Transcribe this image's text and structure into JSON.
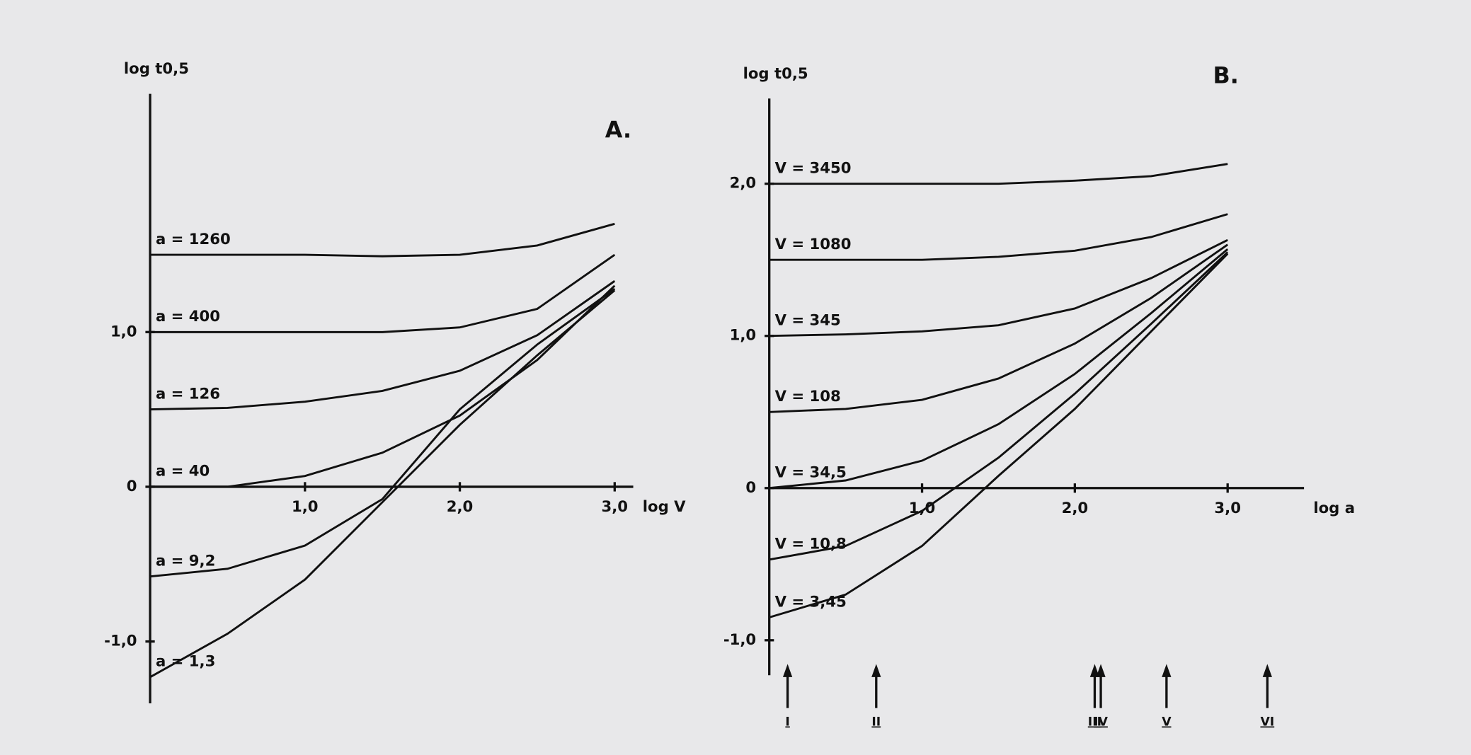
{
  "chart_data": [
    {
      "type": "line",
      "title": "A.",
      "x_label": "log V",
      "y_label": "log t0,5",
      "x": [
        0,
        0.5,
        1.0,
        1.5,
        2.0,
        2.5,
        3.0
      ],
      "series": [
        {
          "name": "a = 1260",
          "color": "#111111",
          "values": [
            1.5,
            1.5,
            1.5,
            1.49,
            1.5,
            1.56,
            1.7
          ]
        },
        {
          "name": "a = 400",
          "color": "#111111",
          "values": [
            1.0,
            1.0,
            1.0,
            1.0,
            1.03,
            1.15,
            1.5
          ]
        },
        {
          "name": "a = 126",
          "color": "#111111",
          "values": [
            0.5,
            0.51,
            0.55,
            0.62,
            0.75,
            0.98,
            1.33
          ]
        },
        {
          "name": "a = 40",
          "color": "#111111",
          "values": [
            0,
            0,
            0.07,
            0.22,
            0.46,
            0.82,
            1.3
          ]
        },
        {
          "name": "a = 9,2",
          "color": "#111111",
          "values": [
            -0.58,
            -0.53,
            -0.38,
            -0.08,
            0.5,
            0.92,
            1.28
          ]
        },
        {
          "name": "a = 1,3",
          "color": "#111111",
          "values": [
            -1.23,
            -0.95,
            -0.6,
            -0.1,
            0.4,
            0.85,
            1.27
          ]
        }
      ],
      "xlim": [
        0,
        3.12
      ],
      "ylim": [
        -1.4,
        2.54
      ],
      "xticks": [
        {
          "value": 1,
          "label": "1,0"
        },
        {
          "value": 2,
          "label": "2,0"
        },
        {
          "value": 3,
          "label": "3,0"
        }
      ],
      "yticks": [
        {
          "value": -1,
          "label": "-1,0"
        },
        0,
        {
          "value": 1,
          "label": "1,0"
        }
      ],
      "grid": false
    },
    {
      "type": "line",
      "title": "B.",
      "x_label": "log a",
      "y_label": "log t0,5",
      "x": [
        0,
        0.5,
        1.0,
        1.5,
        2.0,
        2.5,
        3.0
      ],
      "series": [
        {
          "name": "V = 3450",
          "color": "#111111",
          "values": [
            2.0,
            2.0,
            2.0,
            2.0,
            2.02,
            2.05,
            2.13
          ]
        },
        {
          "name": "V = 1080",
          "color": "#111111",
          "values": [
            1.5,
            1.5,
            1.5,
            1.52,
            1.56,
            1.65,
            1.8
          ]
        },
        {
          "name": "V = 345",
          "color": "#111111",
          "values": [
            1.0,
            1.01,
            1.03,
            1.07,
            1.18,
            1.38,
            1.63
          ]
        },
        {
          "name": "V = 108",
          "color": "#111111",
          "values": [
            0.5,
            0.52,
            0.58,
            0.72,
            0.95,
            1.25,
            1.6
          ]
        },
        {
          "name": "V = 34,5",
          "color": "#111111",
          "values": [
            0,
            0.05,
            0.18,
            0.42,
            0.75,
            1.15,
            1.57
          ]
        },
        {
          "name": "V = 10,8",
          "color": "#111111",
          "values": [
            -0.47,
            -0.38,
            -0.15,
            0.2,
            0.62,
            1.08,
            1.55
          ]
        },
        {
          "name": "V = 3,45",
          "color": "#111111",
          "values": [
            -0.85,
            -0.7,
            -0.38,
            0.08,
            0.52,
            1.03,
            1.54
          ]
        }
      ],
      "xlim": [
        0,
        3.5
      ],
      "ylim": [
        -1.23,
        2.56
      ],
      "xticks": [
        {
          "value": 1,
          "label": "1,0"
        },
        {
          "value": 2,
          "label": "2,0"
        },
        {
          "value": 3,
          "label": "3,0"
        }
      ],
      "yticks": [
        {
          "value": -1,
          "label": "-1,0"
        },
        0,
        {
          "value": 1,
          "label": "1,0"
        },
        {
          "value": 2,
          "label": "2,0"
        }
      ],
      "markers": [
        {
          "x": 0.12,
          "label": "I"
        },
        {
          "x": 0.7,
          "label": "II"
        },
        {
          "x": 2.13,
          "label": "III"
        },
        {
          "x": 2.17,
          "label": "IV"
        },
        {
          "x": 2.6,
          "label": "V"
        },
        {
          "x": 3.26,
          "label": "VI"
        }
      ],
      "grid": false
    }
  ]
}
